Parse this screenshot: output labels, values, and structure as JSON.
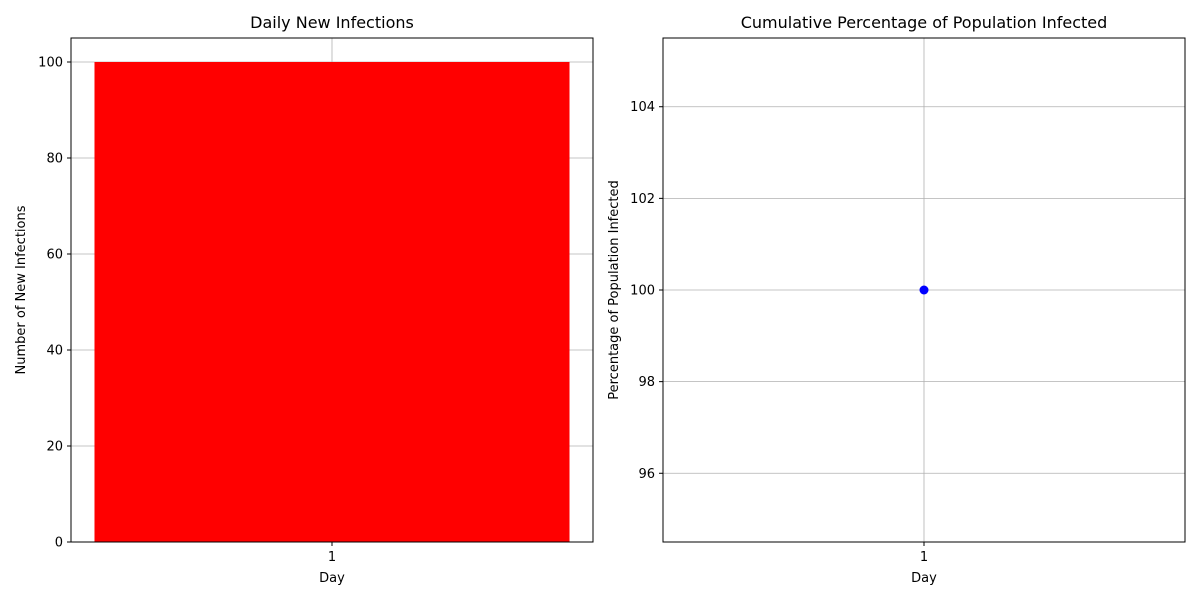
{
  "chart_data": [
    {
      "type": "bar",
      "title": "Daily New Infections",
      "xlabel": "Day",
      "ylabel": "Number of New Infections",
      "categories": [
        "1"
      ],
      "values": [
        100
      ],
      "color": "#ff0000",
      "ylim": [
        0,
        105
      ],
      "yticks": [
        0,
        20,
        40,
        60,
        80,
        100
      ],
      "grid": true
    },
    {
      "type": "line",
      "title": "Cumulative Percentage of Population Infected",
      "xlabel": "Day",
      "ylabel": "Percentage of Population Infected",
      "x": [
        "1"
      ],
      "y": [
        100
      ],
      "color": "#0000ff",
      "marker": "circle",
      "ylim": [
        94.5,
        105.5
      ],
      "yticks": [
        96,
        98,
        100,
        102,
        104
      ],
      "grid": true
    }
  ]
}
